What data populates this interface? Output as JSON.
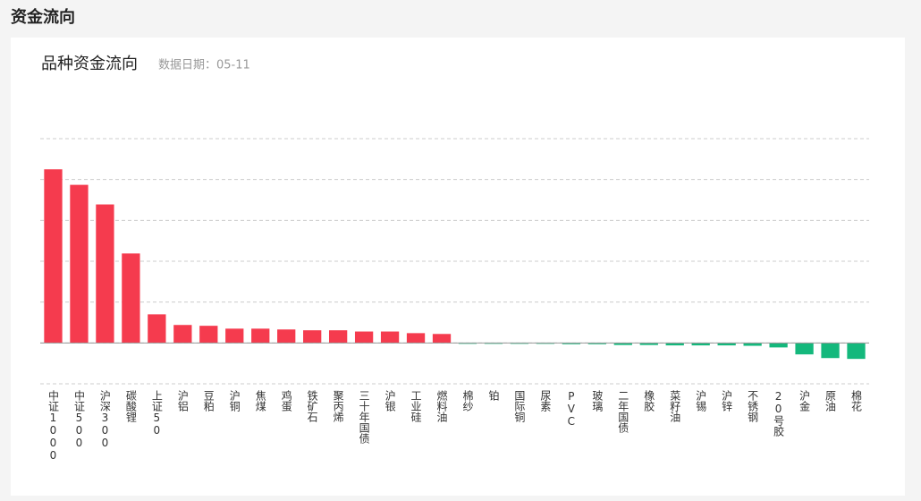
{
  "header": {
    "title": "资金流向"
  },
  "chart_data": {
    "type": "bar",
    "title": "品种资金流向",
    "subtitle": "数据日期：05-11",
    "categories": [
      "中证1000",
      "中证500",
      "沪深300",
      "碳酸锂",
      "上证50",
      "沪铝",
      "豆粕",
      "沪铜",
      "焦煤",
      "鸡蛋",
      "铁矿石",
      "聚丙烯",
      "三十年国债",
      "沪银",
      "工业硅",
      "燃料油",
      "棉纱",
      "铂",
      "国际铜",
      "尿素",
      "PVC",
      "玻璃",
      "二年国债",
      "橡胶",
      "菜籽油",
      "沪锡",
      "沪锌",
      "不锈钢",
      "20号胶",
      "沪金",
      "原油",
      "棉花"
    ],
    "values": [
      4.25,
      3.87,
      3.39,
      2.19,
      0.7,
      0.44,
      0.42,
      0.35,
      0.35,
      0.33,
      0.31,
      0.31,
      0.28,
      0.28,
      0.24,
      0.22,
      -0.01,
      -0.01,
      -0.02,
      -0.02,
      -0.03,
      -0.03,
      -0.05,
      -0.05,
      -0.06,
      -0.06,
      -0.06,
      -0.07,
      -0.11,
      -0.28,
      -0.37,
      -0.39
    ],
    "positive_color": "#f53b4e",
    "negative_color": "#14b87c",
    "ylim": [
      -1,
      5
    ],
    "yticks": [
      -1,
      0,
      1,
      2,
      3,
      4,
      5
    ],
    "grid": true
  }
}
